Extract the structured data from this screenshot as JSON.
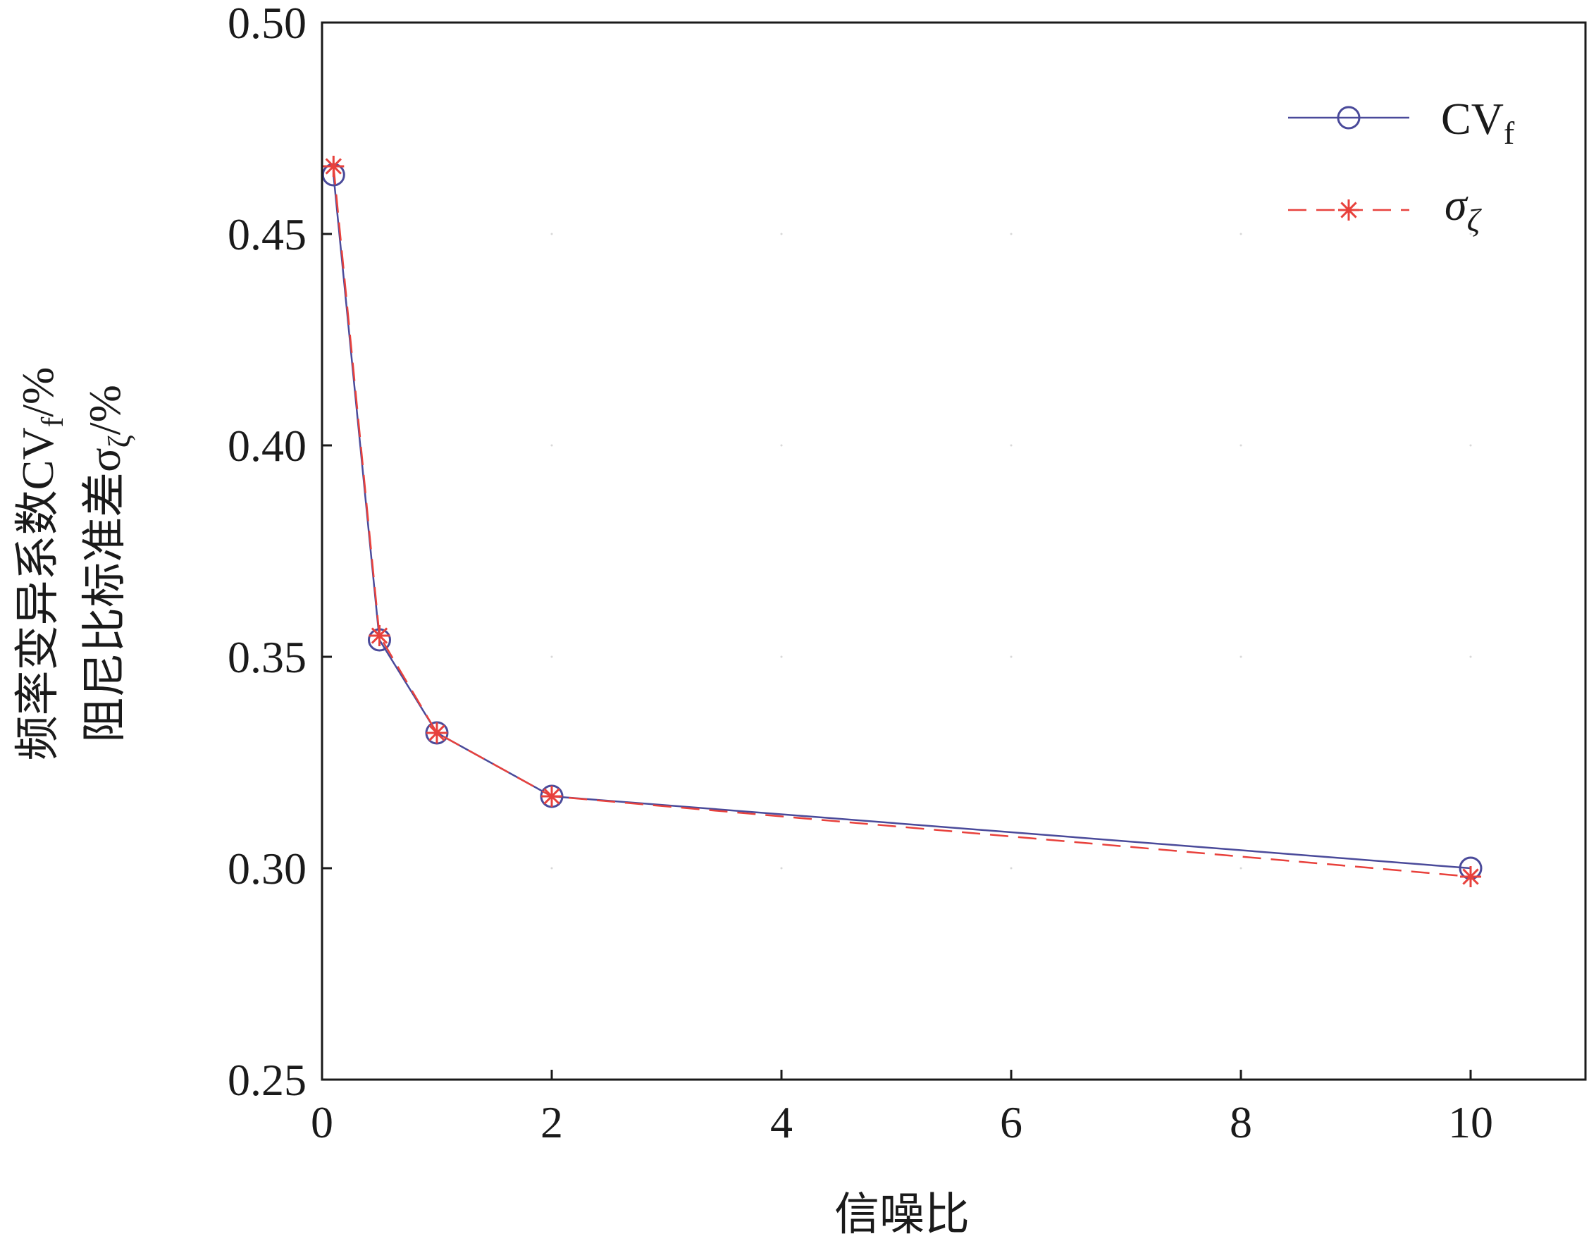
{
  "chart_data": {
    "type": "line",
    "xlabel": "信噪比",
    "ylabel": {
      "line1_main": "频率变异系数CV",
      "line1_sub": "f",
      "line1_unit": "/%",
      "line2_main": "阻尼比标准差σ",
      "line2_sub": "ζ",
      "line2_unit": "/%"
    },
    "xlim": [
      0,
      11
    ],
    "ylim": [
      0.25,
      0.5
    ],
    "xticks": [
      0,
      2,
      4,
      6,
      8,
      10
    ],
    "xtick_labels": [
      "0",
      "2",
      "4",
      "6",
      "8",
      "10"
    ],
    "yticks": [
      0.25,
      0.3,
      0.35,
      0.4,
      0.45,
      0.5
    ],
    "ytick_labels": [
      "0.25",
      "0.30",
      "0.35",
      "0.40",
      "0.45",
      "0.50"
    ],
    "legend_position": "top-right",
    "series": [
      {
        "name": "CV",
        "name_sub": "f",
        "color": "#4a4a9a",
        "line_style": "solid",
        "marker": "circle",
        "x": [
          0.1,
          0.5,
          1,
          2,
          10
        ],
        "y": [
          0.464,
          0.354,
          0.332,
          0.317,
          0.3
        ]
      },
      {
        "name": "σ",
        "name_sub": "ζ",
        "color": "#e8413c",
        "line_style": "dashed",
        "marker": "asterisk",
        "x": [
          0.1,
          0.5,
          1,
          2,
          10
        ],
        "y": [
          0.466,
          0.355,
          0.332,
          0.317,
          0.298
        ]
      }
    ]
  }
}
